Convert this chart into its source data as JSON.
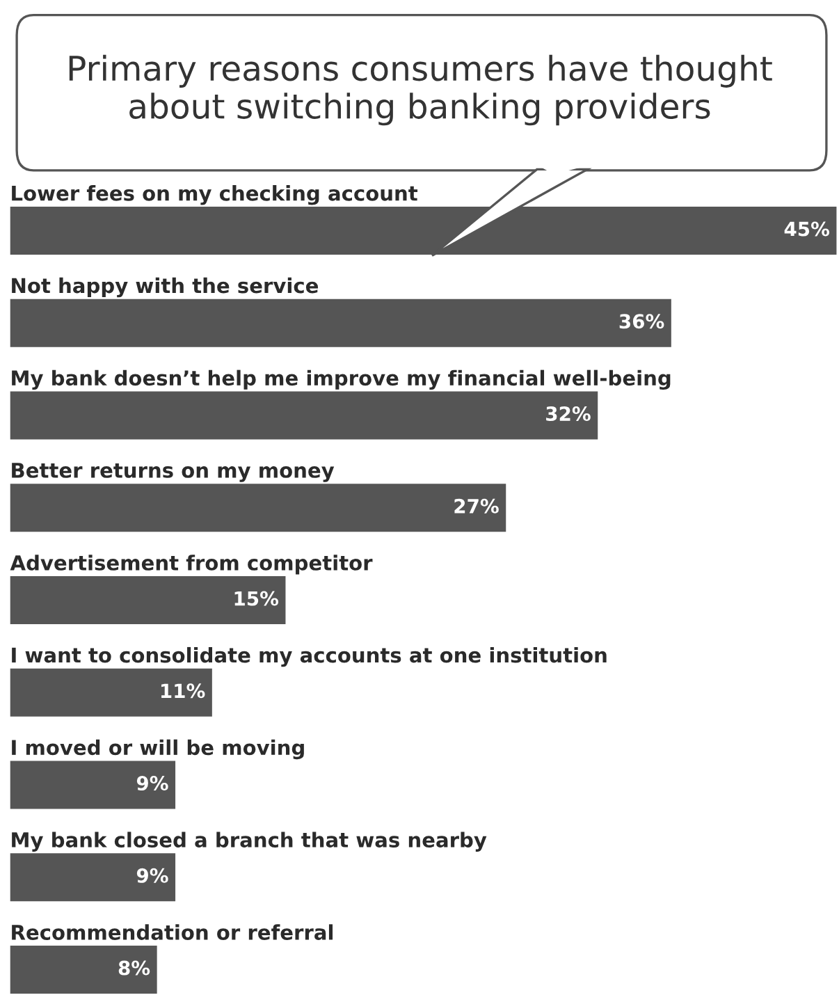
{
  "chart_data": {
    "type": "bar",
    "orientation": "horizontal",
    "title": "Primary reasons consumers have thought\nabout switching banking providers",
    "categories": [
      "Lower fees on my checking account",
      "Not happy with the service",
      "My bank doesn’t help me improve my financial well-being",
      "Better returns on my money",
      "Advertisement from competitor",
      "I want to consolidate my accounts at one institution",
      "I moved or will be moving",
      "My bank closed a branch that was nearby",
      "Recommendation or referral"
    ],
    "values": [
      45,
      36,
      32,
      27,
      15,
      11,
      9,
      9,
      8
    ],
    "value_labels": [
      "45%",
      "36%",
      "32%",
      "27%",
      "15%",
      "11%",
      "9%",
      "9%",
      "8%"
    ],
    "color": "#555555"
  }
}
